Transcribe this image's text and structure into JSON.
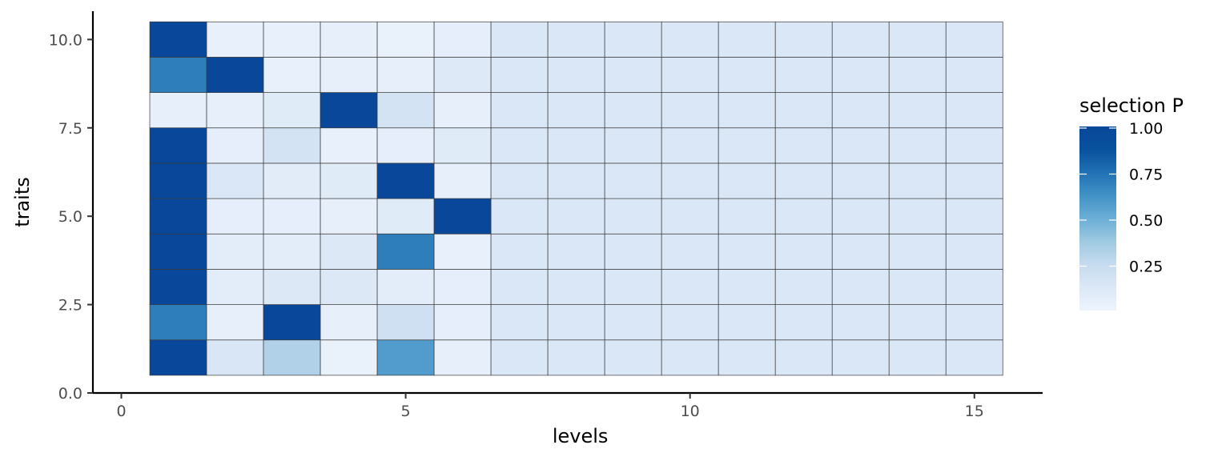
{
  "chart_data": {
    "type": "heatmap",
    "title": "",
    "xlabel": "levels",
    "ylabel": "traits",
    "xlim": [
      -0.5,
      16.2
    ],
    "ylim": [
      0,
      10.8
    ],
    "x_ticks": [
      0,
      5,
      10,
      15
    ],
    "x_tick_labels": [
      "0",
      "5",
      "10",
      "15"
    ],
    "y_ticks": [
      0,
      2.5,
      5,
      7.5,
      10
    ],
    "y_tick_labels": [
      "0.0",
      "2.5",
      "5.0",
      "7.5",
      "10.0"
    ],
    "x_levels": [
      1,
      2,
      3,
      4,
      5,
      6,
      7,
      8,
      9,
      10,
      11,
      12,
      13,
      14,
      15
    ],
    "y_traits": [
      1,
      2,
      3,
      4,
      5,
      6,
      7,
      8,
      9,
      10
    ],
    "values": [
      [
        1.0,
        0.14,
        0.32,
        0.03,
        0.58,
        0.05,
        0.13,
        0.13,
        0.13,
        0.13,
        0.13,
        0.13,
        0.13,
        0.13,
        0.13
      ],
      [
        0.7,
        0.05,
        1.0,
        0.05,
        0.2,
        0.06,
        0.13,
        0.13,
        0.13,
        0.13,
        0.13,
        0.13,
        0.13,
        0.13,
        0.13
      ],
      [
        1.0,
        0.07,
        0.12,
        0.12,
        0.07,
        0.06,
        0.13,
        0.13,
        0.13,
        0.13,
        0.13,
        0.13,
        0.13,
        0.13,
        0.13
      ],
      [
        1.0,
        0.07,
        0.07,
        0.12,
        0.7,
        0.04,
        0.13,
        0.13,
        0.13,
        0.13,
        0.13,
        0.13,
        0.13,
        0.13,
        0.13
      ],
      [
        1.0,
        0.06,
        0.06,
        0.05,
        0.09,
        1.0,
        0.13,
        0.13,
        0.13,
        0.13,
        0.13,
        0.13,
        0.13,
        0.13,
        0.13
      ],
      [
        1.0,
        0.13,
        0.08,
        0.09,
        1.0,
        0.05,
        0.13,
        0.13,
        0.13,
        0.13,
        0.13,
        0.13,
        0.13,
        0.13,
        0.13
      ],
      [
        1.0,
        0.06,
        0.17,
        0.04,
        0.06,
        0.09,
        0.13,
        0.13,
        0.13,
        0.13,
        0.13,
        0.13,
        0.13,
        0.13,
        0.13
      ],
      [
        0.05,
        0.05,
        0.09,
        1.0,
        0.17,
        0.05,
        0.13,
        0.13,
        0.13,
        0.13,
        0.13,
        0.13,
        0.13,
        0.13,
        0.13
      ],
      [
        0.7,
        1.0,
        0.04,
        0.05,
        0.05,
        0.11,
        0.13,
        0.13,
        0.13,
        0.13,
        0.13,
        0.13,
        0.13,
        0.13,
        0.13
      ],
      [
        1.0,
        0.04,
        0.04,
        0.05,
        0.03,
        0.06,
        0.13,
        0.13,
        0.13,
        0.13,
        0.13,
        0.13,
        0.13,
        0.13,
        0.13
      ]
    ],
    "legend": {
      "title": "selection P",
      "position": "right",
      "breaks": [
        1.0,
        0.75,
        0.5,
        0.25
      ],
      "labels": [
        "1.00",
        "0.75",
        "0.50",
        "0.25"
      ],
      "range": [
        0,
        1
      ]
    },
    "color_scale": {
      "low": "#eef4fd",
      "stops": [
        "#eef4fd",
        "#dbe8f6",
        "#c6dbef",
        "#9ecae1",
        "#6baed6",
        "#4292c6",
        "#2171b5",
        "#08519c",
        "#08479a"
      ]
    },
    "grid": false
  }
}
